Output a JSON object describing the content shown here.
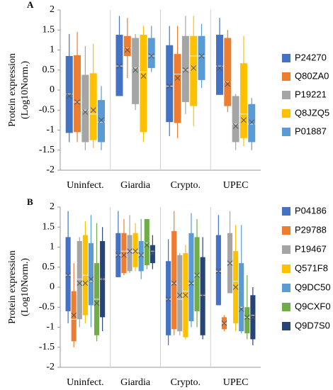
{
  "chart_data": [
    {
      "type": "box",
      "label": "A",
      "ylabel": [
        "Protein expression",
        "(Log10Norm.)"
      ],
      "categories": [
        "Uninfect.",
        "Giardia",
        "Crypto.",
        "UPEC"
      ],
      "ylim": [
        -2,
        2
      ],
      "yticks": [
        -2,
        -1.5,
        -1,
        -0.5,
        0,
        0.5,
        1,
        1.5,
        2
      ],
      "series": [
        {
          "name": "P24270",
          "color": "#4472c4",
          "values": [
            {
              "min": -1.3,
              "q1": -1.07,
              "median": -0.1,
              "q3": 0.85,
              "max": 1.4,
              "mean": -0.15
            },
            {
              "min": -0.15,
              "q1": -0.15,
              "median": 0.6,
              "q3": 1.38,
              "max": 1.85,
              "mean": 0.6
            },
            {
              "min": -1.15,
              "q1": -0.8,
              "median": 0.1,
              "q3": 1.12,
              "max": 1.6,
              "mean": 0.1
            },
            {
              "min": -0.12,
              "q1": -0.12,
              "median": 0.6,
              "q3": 1.38,
              "max": 1.8,
              "mean": 0.55
            }
          ]
        },
        {
          "name": "Q80ZA0",
          "color": "#ed7d31",
          "values": [
            {
              "min": -1.3,
              "q1": -1.05,
              "median": -0.3,
              "q3": 0.87,
              "max": 1.45,
              "mean": -0.3
            },
            {
              "min": 0.3,
              "q1": 0.85,
              "median": 1.05,
              "q3": 1.35,
              "max": 1.8,
              "mean": 1.0
            },
            {
              "min": -1.2,
              "q1": -0.82,
              "median": 0.4,
              "q3": 0.9,
              "max": 1.6,
              "mean": 0.3
            },
            {
              "min": -0.55,
              "q1": -0.4,
              "median": 0.2,
              "q3": 1.3,
              "max": 1.5,
              "mean": 0.15
            }
          ]
        },
        {
          "name": "P19221",
          "color": "#a5a5a5",
          "values": [
            {
              "min": -1.5,
              "q1": -1.3,
              "median": -0.5,
              "q3": 0.38,
              "max": 1.1,
              "mean": -0.55
            },
            {
              "min": -0.5,
              "q1": -0.35,
              "median": 0.55,
              "q3": 1.3,
              "max": 1.4,
              "mean": 0.5
            },
            {
              "min": -0.6,
              "q1": -0.3,
              "median": 0.5,
              "q3": 1.35,
              "max": 1.85,
              "mean": 0.5
            },
            {
              "min": -1.5,
              "q1": -1.3,
              "median": -0.85,
              "q3": -0.15,
              "max": -0.1,
              "mean": -0.9
            }
          ]
        },
        {
          "name": "Q8JZQ5",
          "color": "#ffc000",
          "values": [
            {
              "min": -1.45,
              "q1": -1.25,
              "median": -0.6,
              "q3": 0.42,
              "max": 1.15,
              "mean": -0.5
            },
            {
              "min": -1.3,
              "q1": -1.05,
              "median": 0.45,
              "q3": 1.38,
              "max": 1.6,
              "mean": 0.35
            },
            {
              "min": -0.9,
              "q1": -0.4,
              "median": 0.85,
              "q3": 1.35,
              "max": 1.85,
              "mean": 0.55
            },
            {
              "min": -1.4,
              "q1": -1.2,
              "median": -0.6,
              "q3": 0.67,
              "max": 1.35,
              "mean": -0.75
            }
          ]
        },
        {
          "name": "P01887",
          "color": "#5b9bd5",
          "values": [
            {
              "min": -1.5,
              "q1": -1.3,
              "median": -0.8,
              "q3": -0.25,
              "max": 0.1,
              "mean": -0.75
            },
            {
              "min": 0.45,
              "q1": 0.55,
              "median": 0.85,
              "q3": 1.3,
              "max": 1.6,
              "mean": 0.85
            },
            {
              "min": 0.05,
              "q1": 0.25,
              "median": 0.85,
              "q3": 1.35,
              "max": 1.65,
              "mean": 0.85
            },
            {
              "min": -1.5,
              "q1": -1.3,
              "median": -0.85,
              "q3": -0.35,
              "max": -0.2,
              "mean": -0.8
            }
          ]
        }
      ]
    },
    {
      "type": "box",
      "label": "B",
      "ylabel": [
        "Protein expression",
        "(Log10Norm.)"
      ],
      "categories": [
        "Uninfect.",
        "Giardia",
        "Crypto.",
        "UPEC"
      ],
      "ylim": [
        -2,
        2
      ],
      "yticks": [
        -2,
        -1.5,
        -1,
        -0.5,
        0,
        0.5,
        1,
        1.5,
        2
      ],
      "series": [
        {
          "name": "P04186",
          "color": "#4472c4",
          "values": [
            {
              "min": -0.9,
              "q1": -0.6,
              "median": 0.3,
              "q3": 1.25,
              "max": 1.9,
              "mean": 0.3
            },
            {
              "min": 0.25,
              "q1": 0.25,
              "median": 0.8,
              "q3": 1.35,
              "max": 1.9,
              "mean": 0.8
            },
            {
              "min": -1.45,
              "q1": -1.2,
              "median": -0.3,
              "q3": 0.65,
              "max": 1.2,
              "mean": -0.3
            },
            {
              "min": -0.45,
              "q1": -0.45,
              "median": 0.4,
              "q3": 1.3,
              "max": 1.8,
              "mean": 0.4
            }
          ]
        },
        {
          "name": "P29788",
          "color": "#ed7d31",
          "values": [
            {
              "min": -1.5,
              "q1": -1.35,
              "median": -0.8,
              "q3": -0.1,
              "max": 0.6,
              "mean": -0.7
            },
            {
              "min": 0.3,
              "q1": 0.35,
              "median": 0.9,
              "q3": 1.35,
              "max": 1.7,
              "mean": 0.8
            },
            {
              "min": -1.2,
              "q1": -1.05,
              "median": 0.1,
              "q3": 1.4,
              "max": 1.9,
              "mean": 0.1
            },
            {
              "min": -1.1,
              "q1": -1.05,
              "median": -0.9,
              "q3": -0.75,
              "max": -0.7,
              "mean": -0.9
            }
          ]
        },
        {
          "name": "P19467",
          "color": "#a5a5a5",
          "values": [
            {
              "min": -1.0,
              "q1": -0.8,
              "median": 0.2,
              "q3": 1.15,
              "max": 1.25,
              "mean": 0.1
            },
            {
              "min": 0.35,
              "q1": 0.4,
              "median": 0.9,
              "q3": 1.3,
              "max": 1.8,
              "mean": 0.9
            },
            {
              "min": -1.2,
              "q1": -1.1,
              "median": -0.3,
              "q3": 0.8,
              "max": 0.85,
              "mean": -0.2
            },
            {
              "min": -0.15,
              "q1": -0.15,
              "median": 0.6,
              "q3": 1.35,
              "max": 1.9,
              "mean": 0.6
            }
          ]
        },
        {
          "name": "Q571F8",
          "color": "#ffc000",
          "values": [
            {
              "min": -0.9,
              "q1": -0.7,
              "median": 0.3,
              "q3": 1.3,
              "max": 1.65,
              "mean": 0.1
            },
            {
              "min": 0.4,
              "q1": 0.5,
              "median": 0.9,
              "q3": 1.35,
              "max": 1.6,
              "mean": 0.9
            },
            {
              "min": -1.3,
              "q1": -1.25,
              "median": -0.1,
              "q3": 0.85,
              "max": 1.05,
              "mean": -0.2
            },
            {
              "min": -1.1,
              "q1": -0.9,
              "median": 0.15,
              "q3": 0.9,
              "max": 1.55,
              "mean": 0.0
            }
          ]
        },
        {
          "name": "Q9DC50",
          "color": "#5b9bd5",
          "values": [
            {
              "min": -1.0,
              "q1": -0.45,
              "median": 0.15,
              "q3": 1.1,
              "max": 1.8,
              "mean": 0.2
            },
            {
              "min": 0.2,
              "q1": 0.4,
              "median": 0.8,
              "q3": 1.15,
              "max": 1.7,
              "mean": 0.8
            },
            {
              "min": -1.0,
              "q1": -0.85,
              "median": 0.1,
              "q3": 1.35,
              "max": 1.85,
              "mean": 0.1
            },
            {
              "min": -1.15,
              "q1": -1.1,
              "median": -0.5,
              "q3": 0.6,
              "max": 1.55,
              "mean": -0.55
            }
          ]
        },
        {
          "name": "Q9CXF0",
          "color": "#70ad47",
          "values": [
            {
              "min": -1.35,
              "q1": -1.2,
              "median": -0.3,
              "q3": 0.6,
              "max": 1.6,
              "mean": -0.4
            },
            {
              "min": 0.45,
              "q1": 0.55,
              "median": 1.1,
              "q3": 1.7,
              "max": 1.7,
              "mean": 1.05
            },
            {
              "min": -1.0,
              "q1": -0.6,
              "median": 0.3,
              "q3": 1.25,
              "max": 1.7,
              "mean": 0.3
            },
            {
              "min": -1.3,
              "q1": -1.15,
              "median": -0.75,
              "q3": -0.5,
              "max": 0.3,
              "mean": -0.75
            }
          ]
        },
        {
          "name": "Q9D7S0",
          "color": "#264478",
          "values": [
            {
              "min": -1.1,
              "q1": -0.75,
              "median": 0.2,
              "q3": 1.15,
              "max": 1.5,
              "mean": 0.2
            },
            {
              "min": 0.45,
              "q1": 0.6,
              "median": 0.9,
              "q3": 1.05,
              "max": 1.3,
              "mean": 0.85
            },
            {
              "min": -1.3,
              "q1": -1.2,
              "median": -0.2,
              "q3": 0.75,
              "max": 1.25,
              "mean": -0.2
            },
            {
              "min": -1.45,
              "q1": -1.3,
              "median": -0.7,
              "q3": -0.2,
              "max": 0.0,
              "mean": -0.75
            }
          ]
        }
      ]
    }
  ]
}
